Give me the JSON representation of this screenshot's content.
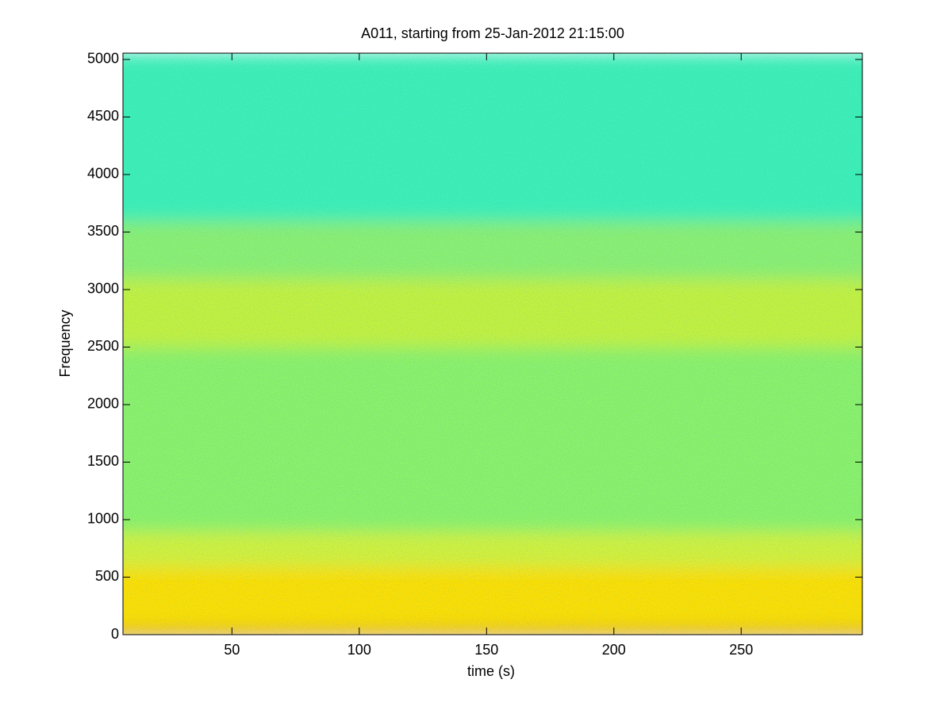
{
  "chart_data": {
    "type": "spectrogram",
    "title": "A011, starting from 25-Jan-2012 21:15:00",
    "x_label": "time (s)",
    "y_label": "Frequency",
    "xlim": [
      7.2,
      297.6
    ],
    "ylim": [
      0,
      5055
    ],
    "xticks": [
      50,
      100,
      150,
      200,
      250
    ],
    "yticks": [
      0,
      500,
      1000,
      1500,
      2000,
      2500,
      3000,
      3500,
      4000,
      4500,
      5000
    ],
    "bands": [
      {
        "color": "#c81a00",
        "ylim": [
          0,
          40
        ]
      },
      {
        "color": "#ffe000",
        "ylim": [
          40,
          600
        ]
      },
      {
        "color": "#d4f23a",
        "ylim": [
          600,
          900
        ]
      },
      {
        "color": "#8ef268",
        "ylim": [
          900,
          2500
        ]
      },
      {
        "color": "#c6f23c",
        "ylim": [
          2500,
          3100
        ]
      },
      {
        "color": "#8ef070",
        "ylim": [
          3100,
          3600
        ]
      },
      {
        "color": "#40f0b4",
        "ylim": [
          3600,
          5055
        ]
      }
    ]
  }
}
